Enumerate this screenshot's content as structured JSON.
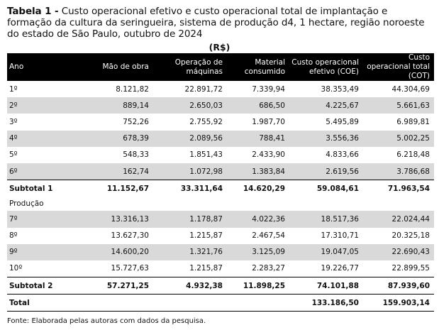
{
  "caption": {
    "lead": "Tabela 1 -",
    "text": "Custo operacional efetivo e custo operacional total de implantação e formação da cultura da seringueira, sistema de produção d4, 1 hectare, região noroeste do estado de São Paulo, outubro de 2024"
  },
  "unit": "(R$)",
  "columns": [
    "Ano",
    "Mão de obra",
    "Operação de máquinas",
    "Material consumido",
    "Custo operacional efetivo (COE)",
    "Custo operacional total (COT)"
  ],
  "rows": [
    {
      "style": "plain",
      "cells": [
        "1º",
        "8.121,82",
        "22.891,72",
        "7.339,94",
        "38.353,49",
        "44.304,69"
      ]
    },
    {
      "style": "shade",
      "cells": [
        "2º",
        "889,14",
        "2.650,03",
        "686,50",
        "4.225,67",
        "5.661,63"
      ]
    },
    {
      "style": "plain",
      "cells": [
        "3º",
        "752,26",
        "2.755,92",
        "1.987,70",
        "5.495,89",
        "6.989,81"
      ]
    },
    {
      "style": "shade",
      "cells": [
        "4º",
        "678,39",
        "2.089,56",
        "788,41",
        "3.556,36",
        "5.002,25"
      ]
    },
    {
      "style": "plain",
      "cells": [
        "5º",
        "548,33",
        "1.851,43",
        "2.433,90",
        "4.833,66",
        "6.218,48"
      ]
    },
    {
      "style": "shade",
      "cells": [
        "6º",
        "162,74",
        "1.072,98",
        "1.383,84",
        "2.619,56",
        "3.786,68"
      ]
    },
    {
      "style": "bold",
      "cells": [
        "Subtotal 1",
        "11.152,67",
        "33.311,64",
        "14.620,29",
        "59.084,61",
        "71.963,54"
      ]
    },
    {
      "style": "section",
      "cells": [
        "Produção",
        "",
        "",
        "",
        "",
        ""
      ]
    },
    {
      "style": "shade",
      "cells": [
        "7º",
        "13.316,13",
        "1.178,87",
        "4.022,36",
        "18.517,36",
        "22.024,44"
      ]
    },
    {
      "style": "plain",
      "cells": [
        "8º",
        "13.627,30",
        "1.215,87",
        "2.467,54",
        "17.310,71",
        "20.325,18"
      ]
    },
    {
      "style": "shade",
      "cells": [
        "9º",
        "14.600,20",
        "1.321,76",
        "3.125,09",
        "19.047,05",
        "22.690,43"
      ]
    },
    {
      "style": "plain",
      "cells": [
        "10º",
        "15.727,63",
        "1.215,87",
        "2.283,27",
        "19.226,77",
        "22.899,55"
      ]
    },
    {
      "style": "bold",
      "cells": [
        "Subtotal 2",
        "57.271,25",
        "4.932,38",
        "11.898,25",
        "74.101,88",
        "87.939,60"
      ]
    },
    {
      "style": "bold total",
      "cells": [
        "Total",
        "",
        "",
        "",
        "133.186,50",
        "159.903,14"
      ]
    }
  ],
  "source": "Fonte: Elaborada pelas autoras com dados da pesquisa."
}
